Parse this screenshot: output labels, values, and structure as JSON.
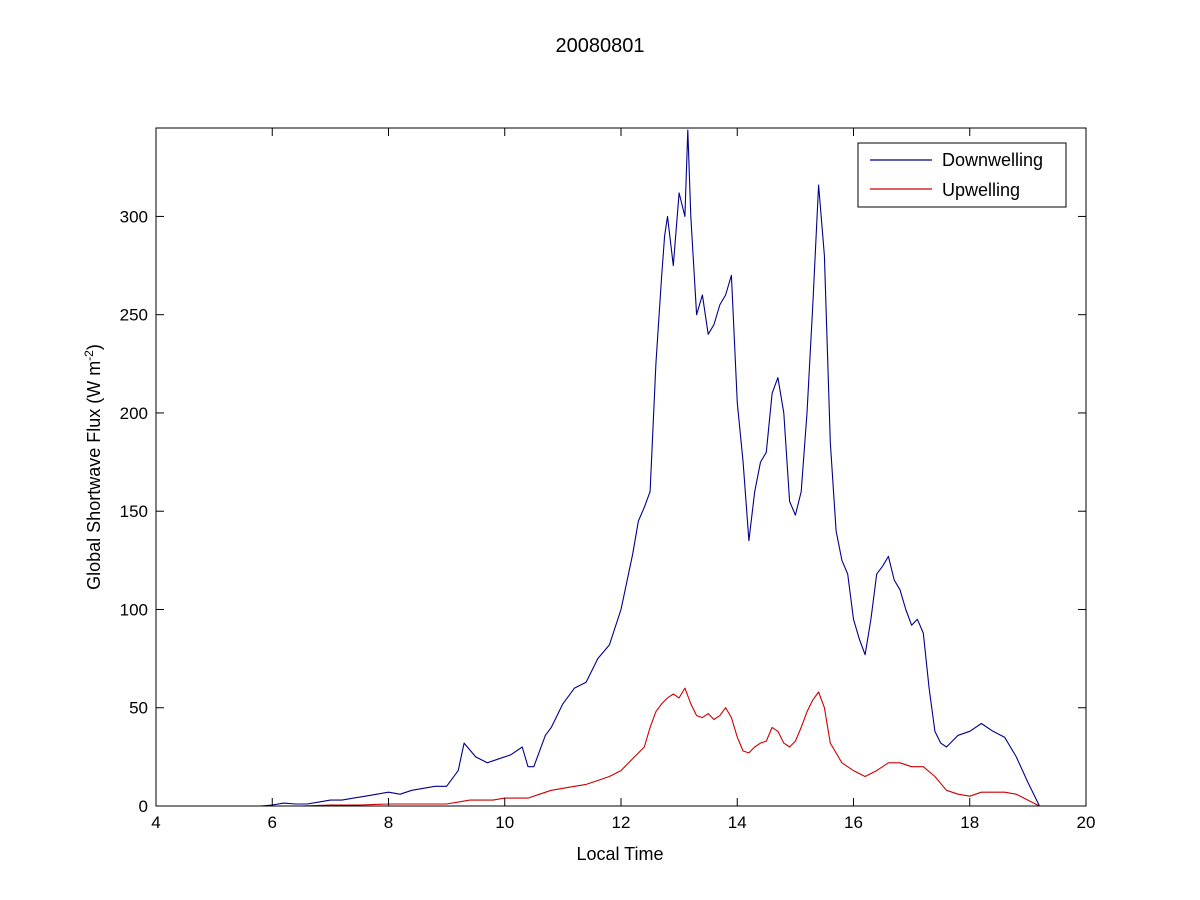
{
  "chart_data": {
    "type": "line",
    "title": "20080801",
    "xlabel": "Local Time",
    "ylabel": "Global Shortwave Flux (W m",
    "ylabel_superscript": "-2",
    "ylabel_suffix": ")",
    "xlim": [
      4,
      20
    ],
    "ylim": [
      0,
      345
    ],
    "xticks": [
      4,
      6,
      8,
      10,
      12,
      14,
      16,
      18,
      20
    ],
    "yticks": [
      0,
      50,
      100,
      150,
      200,
      250,
      300
    ],
    "grid": false,
    "legend_position": "top-right",
    "series": [
      {
        "name": "Downwelling",
        "color": "#00008b",
        "x": [
          4.0,
          4.5,
          5.0,
          5.5,
          5.8,
          6.0,
          6.2,
          6.4,
          6.6,
          6.8,
          7.0,
          7.2,
          7.4,
          7.6,
          7.8,
          8.0,
          8.2,
          8.4,
          8.6,
          8.8,
          9.0,
          9.2,
          9.3,
          9.5,
          9.7,
          9.9,
          10.1,
          10.3,
          10.4,
          10.5,
          10.7,
          10.8,
          11.0,
          11.2,
          11.4,
          11.6,
          11.8,
          12.0,
          12.2,
          12.3,
          12.4,
          12.5,
          12.6,
          12.7,
          12.75,
          12.8,
          12.9,
          13.0,
          13.1,
          13.15,
          13.2,
          13.3,
          13.4,
          13.5,
          13.6,
          13.7,
          13.8,
          13.9,
          14.0,
          14.1,
          14.2,
          14.3,
          14.4,
          14.5,
          14.6,
          14.7,
          14.8,
          14.9,
          15.0,
          15.1,
          15.2,
          15.3,
          15.4,
          15.5,
          15.6,
          15.7,
          15.8,
          15.9,
          16.0,
          16.1,
          16.2,
          16.3,
          16.4,
          16.5,
          16.6,
          16.7,
          16.8,
          16.9,
          17.0,
          17.1,
          17.2,
          17.3,
          17.4,
          17.5,
          17.6,
          17.8,
          18.0,
          18.2,
          18.4,
          18.6,
          18.8,
          19.0,
          19.2
        ],
        "values": [
          0,
          0,
          0,
          0,
          0,
          0.5,
          1.5,
          1,
          1,
          2,
          3,
          3,
          4,
          5,
          6,
          7,
          6,
          8,
          9,
          10,
          10,
          18,
          32,
          25,
          22,
          24,
          26,
          30,
          20,
          20,
          36,
          40,
          52,
          60,
          63,
          75,
          82,
          100,
          128,
          145,
          152,
          160,
          225,
          270,
          290,
          300,
          275,
          312,
          300,
          344,
          300,
          250,
          260,
          240,
          245,
          255,
          260,
          270,
          205,
          175,
          135,
          160,
          175,
          180,
          210,
          218,
          200,
          155,
          148,
          160,
          200,
          255,
          316,
          280,
          185,
          140,
          125,
          118,
          95,
          85,
          77,
          95,
          118,
          122,
          127,
          115,
          110,
          100,
          92,
          95,
          88,
          60,
          38,
          32,
          30,
          36,
          38,
          42,
          38,
          35,
          25,
          12,
          0
        ]
      },
      {
        "name": "Upwelling",
        "color": "#cc0000",
        "x": [
          4.0,
          4.5,
          5.0,
          5.5,
          6.0,
          6.5,
          7.0,
          7.5,
          8.0,
          8.5,
          9.0,
          9.2,
          9.4,
          9.6,
          9.8,
          10.0,
          10.2,
          10.4,
          10.6,
          10.8,
          11.0,
          11.2,
          11.4,
          11.6,
          11.8,
          12.0,
          12.2,
          12.4,
          12.5,
          12.6,
          12.7,
          12.8,
          12.9,
          13.0,
          13.1,
          13.2,
          13.3,
          13.4,
          13.5,
          13.6,
          13.7,
          13.8,
          13.9,
          14.0,
          14.1,
          14.2,
          14.3,
          14.4,
          14.5,
          14.6,
          14.7,
          14.8,
          14.9,
          15.0,
          15.1,
          15.2,
          15.3,
          15.4,
          15.5,
          15.6,
          15.7,
          15.8,
          15.9,
          16.0,
          16.2,
          16.4,
          16.6,
          16.8,
          17.0,
          17.2,
          17.4,
          17.6,
          17.8,
          18.0,
          18.2,
          18.4,
          18.6,
          18.8,
          19.0,
          19.2
        ],
        "values": [
          0,
          0,
          0,
          0,
          0,
          0,
          0.5,
          0.5,
          1,
          1,
          1,
          2,
          3,
          3,
          3,
          4,
          4,
          4,
          6,
          8,
          9,
          10,
          11,
          13,
          15,
          18,
          24,
          30,
          40,
          48,
          52,
          55,
          57,
          55,
          60,
          52,
          46,
          45,
          47,
          44,
          46,
          50,
          45,
          35,
          28,
          27,
          30,
          32,
          33,
          40,
          38,
          32,
          30,
          33,
          40,
          48,
          54,
          58,
          50,
          32,
          27,
          22,
          20,
          18,
          15,
          18,
          22,
          22,
          20,
          20,
          15,
          8,
          6,
          5,
          7,
          7,
          7,
          6,
          3,
          0
        ]
      }
    ]
  }
}
